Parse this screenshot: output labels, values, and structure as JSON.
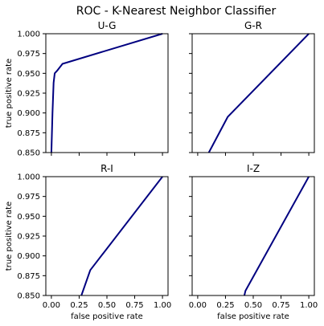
{
  "figure": {
    "title": "ROC - K-Nearest Neighbor Classifier",
    "line_color": "#000080"
  },
  "chart_data": [
    {
      "type": "line",
      "title": "U-G",
      "xlabel": "",
      "ylabel": "true positive rate",
      "xlim": [
        -0.05,
        1.05
      ],
      "ylim": [
        0.85,
        1.0
      ],
      "xticks": [
        "",
        "",
        "",
        "",
        "",
        ""
      ],
      "yticks": [
        "1.000",
        "0.975",
        "0.950",
        "0.925",
        "0.900",
        "0.875",
        "0.850"
      ],
      "series": [
        {
          "x": [
            0.0,
            0.01,
            0.02,
            0.03,
            0.05,
            0.1,
            1.0
          ],
          "y": [
            0.85,
            0.9,
            0.938,
            0.95,
            0.953,
            0.962,
            1.0
          ]
        }
      ]
    },
    {
      "type": "line",
      "title": "G-R",
      "xlabel": "",
      "ylabel": "",
      "xlim": [
        -0.05,
        1.05
      ],
      "ylim": [
        0.85,
        1.0
      ],
      "xticks": [
        "",
        "",
        "",
        "",
        "",
        ""
      ],
      "yticks": [
        "",
        "",
        "",
        "",
        "",
        "",
        ""
      ],
      "series": [
        {
          "x": [
            0.1,
            0.27,
            1.0
          ],
          "y": [
            0.85,
            0.895,
            1.0
          ]
        }
      ]
    },
    {
      "type": "line",
      "title": "R-I",
      "xlabel": "false positive rate",
      "ylabel": "true positive rate",
      "xlim": [
        -0.05,
        1.05
      ],
      "ylim": [
        0.85,
        1.0
      ],
      "xticks": [
        "0.00",
        "0.25",
        "0.50",
        "0.75",
        "1.00"
      ],
      "yticks": [
        "1.000",
        "0.975",
        "0.950",
        "0.925",
        "0.900",
        "0.875",
        "0.850"
      ],
      "series": [
        {
          "x": [
            0.27,
            0.35,
            1.0
          ],
          "y": [
            0.85,
            0.882,
            1.0
          ]
        }
      ]
    },
    {
      "type": "line",
      "title": "I-Z",
      "xlabel": "false positive rate",
      "ylabel": "",
      "xlim": [
        -0.05,
        1.05
      ],
      "ylim": [
        0.85,
        1.0
      ],
      "xticks": [
        "0.00",
        "0.25",
        "0.50",
        "0.75",
        "1.00"
      ],
      "yticks": [
        "",
        "",
        "",
        "",
        "",
        "",
        ""
      ],
      "series": [
        {
          "x": [
            0.42,
            0.43,
            1.0
          ],
          "y": [
            0.85,
            0.856,
            1.0
          ]
        }
      ]
    }
  ]
}
